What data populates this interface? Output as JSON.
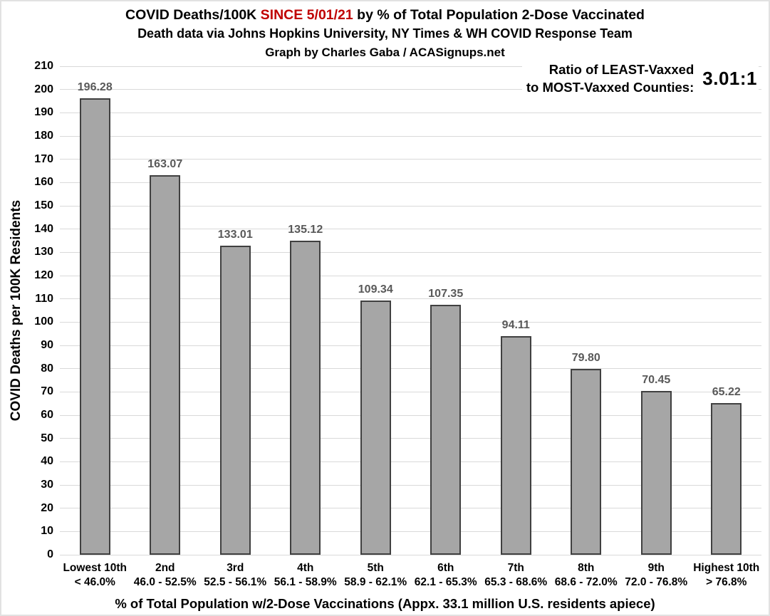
{
  "header": {
    "title_prefix": "COVID Deaths/100K",
    "title_highlight": "SINCE 5/01/21",
    "title_suffix": "by % of Total Population 2-Dose Vaccinated",
    "subtitle": "Death data via Johns Hopkins University, NY Times & WH COVID Response Team",
    "credit": "Graph by Charles Gaba / ACASignups.net"
  },
  "annotation": {
    "label_line1": "Ratio of LEAST-Vaxxed",
    "label_line2": "to MOST-Vaxxed Counties:",
    "value": "3.01:1"
  },
  "chart_data": {
    "type": "bar",
    "title": "COVID Deaths/100K SINCE 5/01/21 by % of Total Population 2-Dose Vaccinated",
    "subtitle": "Death data via Johns Hopkins University, NY Times & WH COVID Response Team",
    "credit": "Graph by Charles Gaba / ACASignups.net",
    "categories": [
      "Lowest 10th",
      "2nd",
      "3rd",
      "4th",
      "5th",
      "6th",
      "7th",
      "8th",
      "9th",
      "Highest 10th"
    ],
    "category_ranges": [
      "< 46.0%",
      "46.0 - 52.5%",
      "52.5 - 56.1%",
      "56.1 - 58.9%",
      "58.9 - 62.1%",
      "62.1 - 65.3%",
      "65.3 - 68.6%",
      "68.6 - 72.0%",
      "72.0 - 76.8%",
      "> 76.8%"
    ],
    "values": [
      196.28,
      163.07,
      133.01,
      135.12,
      109.34,
      107.35,
      94.11,
      79.8,
      70.45,
      65.22
    ],
    "value_labels": [
      "196.28",
      "163.07",
      "133.01",
      "135.12",
      "109.34",
      "107.35",
      "94.11",
      "79.80",
      "70.45",
      "65.22"
    ],
    "xlabel": "% of Total Population w/2-Dose Vaccinations (Appx. 33.1 million U.S. residents apiece)",
    "ylabel": "COVID Deaths per 100K Residents",
    "ylim": [
      0,
      210
    ],
    "ytick_step": 10,
    "grid": "horizontal",
    "legend": "none",
    "annotation_ratio": "3.01:1",
    "colors": {
      "bar_fill": "#a6a6a6",
      "bar_border": "#404040",
      "gridline": "#d9d9d9",
      "value_label": "#595959",
      "title_highlight": "#c00000",
      "text": "#000000",
      "background": "#ffffff"
    }
  }
}
